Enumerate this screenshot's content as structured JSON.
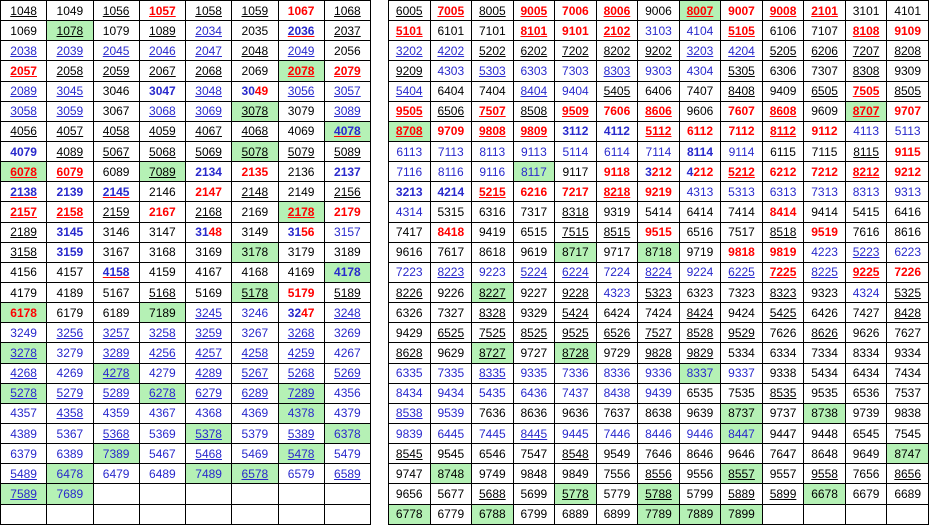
{
  "meta": {
    "description": "Two bordered grids of 4-digit number combinations (lottery-style combination chart).",
    "colors": {
      "black_text": "#000000",
      "blue_text": "#2929CC",
      "red_text": "#FF0000",
      "green_highlight_bg": "#B5F1B5",
      "grid_border": "#000000",
      "page_bg": "#FFFFFF"
    },
    "style_legend": "Each cell is 'VALUE|style'. k=black, b=blue, r=red bold, B=bold, u=underlined, R=red underline, g=green background, m=mixed-color digits (VALUE is 'part:color+part:color'). Empty string = empty cell."
  },
  "left_table": {
    "columns": 8,
    "rows": [
      [
        "1048|ku",
        "1049|k",
        "1056|ku",
        "1057|ru",
        "1058|ku",
        "1059|ku",
        "1067|r",
        "1068|ku"
      ],
      [
        "1069|k",
        "1078|kug",
        "1079|k",
        "1089|ku",
        "2034|bu",
        "2035|k",
        "2036|bBuR",
        "2037|ku"
      ],
      [
        "2038|bu",
        "2039|bu",
        "2045|bu",
        "2046|bu",
        "2047|bu",
        "2048|ku",
        "2049|bu",
        "2056|k"
      ],
      [
        "2057|ru",
        "2058|ku",
        "2059|ku",
        "2067|ku",
        "2068|ku",
        "2069|k",
        "2078|rug",
        "2079|ru"
      ],
      [
        "2089|bu",
        "3045|bu",
        "3046|k",
        "3047|bB",
        "3048|bu",
        "30:b+49:r|mB",
        "3056|bu",
        "3057|bu"
      ],
      [
        "3058|bu",
        "3059|bu",
        "3067|k",
        "3068|bu",
        "3069|bu",
        "3078|kug",
        "3079|k",
        "3089|bu"
      ],
      [
        "4056|ku",
        "4057|ku",
        "4058|ku",
        "4059|ku",
        "4067|ku",
        "4068|ku",
        "4069|k",
        "4078|bBuRg"
      ],
      [
        "4079|bB",
        "4089|ku",
        "5067|ku",
        "5068|ku",
        "5069|ku",
        "5078|kug",
        "5079|ku",
        "5089|ku"
      ],
      [
        "6078|rug",
        "6079|ru",
        "6089|k",
        "7089|kug",
        "2134|bB",
        "2135|r",
        "2136|k",
        "2137|bB"
      ],
      [
        "2138|bBuR",
        "2139|bB",
        "2145|bBuR",
        "2146|k",
        "2147|r",
        "2148|ku",
        "2149|k",
        "2156|ku"
      ],
      [
        "2157|ru",
        "2158|ru",
        "2159|ku",
        "2167|r",
        "2168|ku",
        "2169|k",
        "2178|rug",
        "2179|r"
      ],
      [
        "2189|ku",
        "3145|bB",
        "3146|k",
        "3147|k",
        "31:b+48:r|mB",
        "3149|k",
        "31:b+56:r|mB",
        "3157|b"
      ],
      [
        "3158|ku",
        "3159|bB",
        "3167|k",
        "3168|k",
        "3169|k",
        "3178|kg",
        "3179|k",
        "3189|k"
      ],
      [
        "4156|k",
        "4157|k",
        "4158|bBuR",
        "4159|k",
        "4167|k",
        "4168|k",
        "4169|k",
        "4178|bBg"
      ],
      [
        "4179|k",
        "4189|k",
        "5167|k",
        "5168|ku",
        "5169|k",
        "5178|kug",
        "5179|r",
        "5189|ku"
      ],
      [
        "6178|rg",
        "6179|k",
        "6189|k",
        "7189|kg",
        "3245|bu",
        "3246|b",
        "32:b+47:r|mB",
        "3248|bu"
      ],
      [
        "3249|b",
        "3256|bu",
        "3257|bu",
        "3258|bu",
        "3259|bu",
        "3267|b",
        "3268|bu",
        "3269|b"
      ],
      [
        "3278|bug",
        "3279|b",
        "3289|bu",
        "4256|bu",
        "4257|bu",
        "4258|bu",
        "4259|bu",
        "4267|b"
      ],
      [
        "4268|bu",
        "4269|b",
        "4278|bug",
        "4279|b",
        "4289|bu",
        "5267|bu",
        "5268|bu",
        "5269|bu"
      ],
      [
        "5278|bug",
        "5279|bu",
        "5289|bu",
        "6278|bug",
        "6279|bu",
        "6289|bu",
        "7289|bug",
        "4356|b"
      ],
      [
        "4357|b",
        "4358|bu",
        "4359|b",
        "4367|b",
        "4368|b",
        "4369|b",
        "4378|bg",
        "4379|b"
      ],
      [
        "4389|b",
        "5367|b",
        "5368|bu",
        "5369|b",
        "5378|bug",
        "5379|b",
        "5389|bu",
        "6378|bg"
      ],
      [
        "6379|b",
        "6389|b",
        "7389|bg",
        "5467|b",
        "5468|bu",
        "5469|b",
        "5478|bug",
        "5479|b"
      ],
      [
        "5489|bu",
        "6478|bg",
        "6479|b",
        "6489|b",
        "7489|bg",
        "6578|bug",
        "6579|b",
        "6589|bu"
      ],
      [
        "7589|bug",
        "7689|bg",
        "",
        "",
        "",
        "",
        "",
        ""
      ],
      [
        "",
        "",
        "",
        "",
        "",
        "",
        "",
        ""
      ]
    ]
  },
  "right_table": {
    "columns": 13,
    "rows": [
      [
        "6005|ku",
        "7005|ru",
        "8005|ku",
        "9005|ru",
        "7006|r",
        "8006|ru",
        "9006|k",
        "8007|rug",
        "9007|r",
        "9008|ru",
        "2101|ru",
        "3101|k",
        "4101|k"
      ],
      [
        "5101|ru",
        "6101|k",
        "7101|k",
        "8101|ru",
        "9101|r",
        "2102|ru",
        "3103|b",
        "4104|b",
        "5105|ru",
        "6106|k",
        "7107|k",
        "8108|ru",
        "9109|r"
      ],
      [
        "3202|bu",
        "4202|bu",
        "5202|ku",
        "6202|ku",
        "7202|ku",
        "8202|ku",
        "9202|ku",
        "3203|bu",
        "4204|bu",
        "5205|ku",
        "6206|ku",
        "7207|ku",
        "8208|ku"
      ],
      [
        "9209|ku",
        "4303|b",
        "5303|bu",
        "6303|b",
        "7303|b",
        "8303|bu",
        "9303|b",
        "4304|b",
        "5305|ku",
        "6306|k",
        "7307|k",
        "8308|ku",
        "9309|k"
      ],
      [
        "5404|bu",
        "6404|k",
        "7404|k",
        "8404|bu",
        "9404|b",
        "5405|ku",
        "6406|k",
        "7407|k",
        "8408|ku",
        "9409|k",
        "6505|ku",
        "7505|ru",
        "8505|ku"
      ],
      [
        "9505|ru",
        "6506|ku",
        "7507|ru",
        "8508|ku",
        "9509|ru",
        "7606|r",
        "8606|ru",
        "9606|k",
        "7607|r",
        "8608|ru",
        "9609|k",
        "8707|rug",
        "9707|r"
      ],
      [
        "8708|rug",
        "9709|r",
        "9808|ru",
        "9809|ru",
        "3112|bB",
        "4112|bB",
        "5112|ru",
        "6112|r",
        "7112|r",
        "8112|ru",
        "9112|r",
        "4113|b",
        "5113|b"
      ],
      [
        "6113|b",
        "7113|b",
        "8113|b",
        "9113|b",
        "5114|b",
        "6114|b",
        "7114|b",
        "8114|bB",
        "9114|b",
        "6115|k",
        "7115|k",
        "8115|ku",
        "9115|r"
      ],
      [
        "7116|b",
        "8116|b",
        "9116|b",
        "8117|bg",
        "9117|k",
        "9118|r",
        "3:b+212:r|mB",
        "4:b+212:r|mB",
        "5212|ru",
        "6212|r",
        "7212|r",
        "8212|ru",
        "9212|r"
      ],
      [
        "3213|bB",
        "4214|bB",
        "5215|ru",
        "6216|r",
        "7217|r",
        "8218|ru",
        "9219|r",
        "4313|b",
        "5313|b",
        "6313|b",
        "7313|b",
        "8313|b",
        "9313|b"
      ],
      [
        "4314|b",
        "5315|k",
        "6316|k",
        "7317|k",
        "8318|ku",
        "9319|k",
        "5414|k",
        "6414|k",
        "7414|k",
        "8414|r",
        "9414|k",
        "5415|k",
        "6416|k"
      ],
      [
        "7417|k",
        "8418|r",
        "9419|k",
        "6515|k",
        "7515|ku",
        "8515|ku",
        "9515|r",
        "6516|k",
        "7517|k",
        "8518|ku",
        "9519|r",
        "7616|k",
        "8616|k"
      ],
      [
        "9616|k",
        "7617|k",
        "8618|k",
        "9619|k",
        "8717|kg",
        "9717|k",
        "8718|kg",
        "9719|k",
        "9818|r",
        "9819|r",
        "4223|b",
        "5223|bu",
        "6223|b"
      ],
      [
        "7223|b",
        "8223|bu",
        "9223|b",
        "5224|bu",
        "6224|bu",
        "7224|b",
        "8224|bu",
        "9224|b",
        "6225|bu",
        "7225|ru",
        "8225|bu",
        "9225|ru",
        "7226|r"
      ],
      [
        "8226|ku",
        "9226|k",
        "8227|kug",
        "9227|k",
        "9228|ku",
        "4323|b",
        "5323|ku",
        "6323|k",
        "7323|k",
        "8323|ku",
        "9323|k",
        "4324|b",
        "5325|ku"
      ],
      [
        "6326|k",
        "7327|k",
        "8328|ku",
        "9329|k",
        "5424|ku",
        "6424|k",
        "7424|k",
        "8424|ku",
        "9424|k",
        "5425|ku",
        "6426|k",
        "7427|k",
        "8428|ku"
      ],
      [
        "9429|k",
        "6525|ku",
        "7525|ku",
        "8525|ku",
        "9525|ku",
        "6526|ku",
        "7527|ku",
        "8528|ku",
        "9529|ku",
        "7626|k",
        "8626|ku",
        "9626|k",
        "7627|k"
      ],
      [
        "8628|ku",
        "9629|k",
        "8727|kug",
        "9727|k",
        "8728|kug",
        "9729|k",
        "9828|ku",
        "9829|ku",
        "5334|k",
        "6334|k",
        "7334|k",
        "8334|k",
        "9334|k"
      ],
      [
        "6335|b",
        "7335|b",
        "8335|bu",
        "9335|b",
        "7336|b",
        "8336|b",
        "9336|b",
        "8337|bg",
        "9337|b",
        "9338|k",
        "5434|k",
        "6434|k",
        "7434|k"
      ],
      [
        "8434|b",
        "9434|b",
        "5435|b",
        "6436|b",
        "7437|b",
        "8438|b",
        "9439|b",
        "6535|k",
        "7535|k",
        "8535|ku",
        "9535|k",
        "6536|k",
        "7537|k"
      ],
      [
        "8538|bu",
        "9539|b",
        "7636|k",
        "8636|k",
        "9636|k",
        "7637|k",
        "8638|k",
        "9639|k",
        "8737|kg",
        "9737|k",
        "8738|kg",
        "9739|k",
        "9838|k"
      ],
      [
        "9839|b",
        "6445|b",
        "7445|b",
        "8445|bu",
        "9445|b",
        "7446|b",
        "8446|b",
        "9446|b",
        "8447|bg",
        "9447|k",
        "9448|k",
        "6545|k",
        "7545|k"
      ],
      [
        "8545|ku",
        "9545|k",
        "6546|k",
        "7547|k",
        "8548|ku",
        "9549|k",
        "7646|k",
        "8646|k",
        "9646|k",
        "7647|k",
        "8648|k",
        "9649|k",
        "8747|kg"
      ],
      [
        "9747|k",
        "8748|kg",
        "9749|k",
        "9848|k",
        "9849|k",
        "7556|k",
        "8556|ku",
        "9556|k",
        "8557|kug",
        "9557|k",
        "9558|ku",
        "7656|k",
        "8656|ku"
      ],
      [
        "9656|k",
        "5677|k",
        "5688|ku",
        "5699|k",
        "5778|kug",
        "5779|k",
        "5788|kug",
        "5799|k",
        "5889|ku",
        "5899|ku",
        "6678|kg",
        "6679|k",
        "6689|k"
      ],
      [
        "6778|kg",
        "6779|k",
        "6788|kg",
        "6799|k",
        "6889|k",
        "6899|k",
        "7789|kg",
        "7889|kg",
        "7899|kg",
        "",
        "",
        "",
        ""
      ]
    ]
  }
}
